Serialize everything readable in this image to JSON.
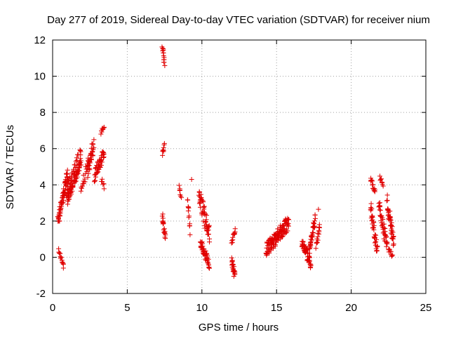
{
  "chart_data": {
    "type": "scatter",
    "title": "Day 277 of 2019, Sidereal Day-to-day VTEC variation (SDTVAR) for receiver nium",
    "xlabel": "GPS time / hours",
    "ylabel": "SDTVAR / TECUs",
    "xlim": [
      0,
      25
    ],
    "ylim": [
      -2,
      12
    ],
    "x_ticks": [
      0,
      5,
      10,
      15,
      20,
      25
    ],
    "y_ticks": [
      -2,
      0,
      2,
      4,
      6,
      8,
      10,
      12
    ],
    "grid": true,
    "marker": "+",
    "color": "#e00000",
    "series": [
      {
        "name": "SDTVAR",
        "clusters": [
          {
            "x_start": 0.35,
            "x_end": 1.0,
            "y_start": 2.0,
            "y_end": 4.6,
            "spread": 0.35,
            "n": 70
          },
          {
            "x_start": 0.4,
            "x_end": 0.75,
            "y_start": 0.4,
            "y_end": -0.5,
            "spread": 0.12,
            "n": 14
          },
          {
            "x_start": 0.95,
            "x_end": 1.9,
            "y_start": 3.4,
            "y_end": 5.6,
            "spread": 0.6,
            "n": 110
          },
          {
            "x_start": 1.9,
            "x_end": 2.4,
            "y_start": 3.8,
            "y_end": 5.2,
            "spread": 0.3,
            "n": 18
          },
          {
            "x_start": 2.35,
            "x_end": 2.75,
            "y_start": 4.8,
            "y_end": 6.2,
            "spread": 0.4,
            "n": 35
          },
          {
            "x_start": 2.8,
            "x_end": 3.45,
            "y_start": 4.5,
            "y_end": 5.8,
            "spread": 0.35,
            "n": 45
          },
          {
            "x_start": 3.25,
            "x_end": 3.45,
            "y_start": 6.9,
            "y_end": 7.2,
            "spread": 0.1,
            "n": 8
          },
          {
            "x_start": 3.25,
            "x_end": 3.45,
            "y_start": 4.3,
            "y_end": 3.9,
            "spread": 0.12,
            "n": 6
          },
          {
            "x_start": 7.35,
            "x_end": 7.5,
            "y_start": 11.7,
            "y_end": 10.6,
            "spread": 0.1,
            "n": 14
          },
          {
            "x_start": 7.35,
            "x_end": 7.5,
            "y_start": 5.7,
            "y_end": 6.2,
            "spread": 0.15,
            "n": 8
          },
          {
            "x_start": 7.35,
            "x_end": 7.55,
            "y_start": 2.2,
            "y_end": 1.1,
            "spread": 0.2,
            "n": 20
          },
          {
            "x_start": 8.5,
            "x_end": 8.6,
            "y_start": 4.0,
            "y_end": 3.3,
            "spread": 0.1,
            "n": 7
          },
          {
            "x_start": 9.05,
            "x_end": 9.2,
            "y_start": 3.3,
            "y_end": 1.4,
            "spread": 0.2,
            "n": 12
          },
          {
            "x_start": 9.3,
            "x_end": 9.3,
            "y_start": 4.3,
            "y_end": 4.3,
            "spread": 0.0,
            "n": 1
          },
          {
            "x_start": 9.8,
            "x_end": 10.5,
            "y_start": 3.5,
            "y_end": 1.2,
            "spread": 0.5,
            "n": 55
          },
          {
            "x_start": 9.9,
            "x_end": 10.5,
            "y_start": 0.8,
            "y_end": -0.4,
            "spread": 0.25,
            "n": 45
          },
          {
            "x_start": 12.0,
            "x_end": 12.2,
            "y_start": -0.2,
            "y_end": -1.0,
            "spread": 0.2,
            "n": 25
          },
          {
            "x_start": 12.0,
            "x_end": 12.25,
            "y_start": 0.8,
            "y_end": 1.6,
            "spread": 0.15,
            "n": 12
          },
          {
            "x_start": 14.3,
            "x_end": 15.8,
            "y_start": 0.4,
            "y_end": 1.9,
            "spread": 0.4,
            "n": 130
          },
          {
            "x_start": 16.7,
            "x_end": 17.3,
            "y_start": 0.8,
            "y_end": -0.4,
            "spread": 0.3,
            "n": 50
          },
          {
            "x_start": 17.2,
            "x_end": 17.6,
            "y_start": 0.3,
            "y_end": 2.2,
            "spread": 0.3,
            "n": 35
          },
          {
            "x_start": 17.65,
            "x_end": 17.9,
            "y_start": 0.6,
            "y_end": 1.7,
            "spread": 0.2,
            "n": 15
          },
          {
            "x_start": 17.8,
            "x_end": 17.8,
            "y_start": 2.65,
            "y_end": 2.65,
            "spread": 0.0,
            "n": 1
          },
          {
            "x_start": 21.3,
            "x_end": 21.6,
            "y_start": 4.3,
            "y_end": 3.6,
            "spread": 0.15,
            "n": 14
          },
          {
            "x_start": 21.3,
            "x_end": 21.75,
            "y_start": 2.8,
            "y_end": 0.3,
            "spread": 0.35,
            "n": 40
          },
          {
            "x_start": 21.9,
            "x_end": 22.15,
            "y_start": 4.4,
            "y_end": 4.0,
            "spread": 0.12,
            "n": 8
          },
          {
            "x_start": 21.85,
            "x_end": 22.4,
            "y_start": 2.9,
            "y_end": 0.6,
            "spread": 0.35,
            "n": 40
          },
          {
            "x_start": 22.4,
            "x_end": 22.85,
            "y_start": 3.1,
            "y_end": 0.8,
            "spread": 0.35,
            "n": 45
          },
          {
            "x_start": 22.5,
            "x_end": 22.75,
            "y_start": 0.4,
            "y_end": 0.1,
            "spread": 0.12,
            "n": 10
          }
        ]
      }
    ]
  }
}
